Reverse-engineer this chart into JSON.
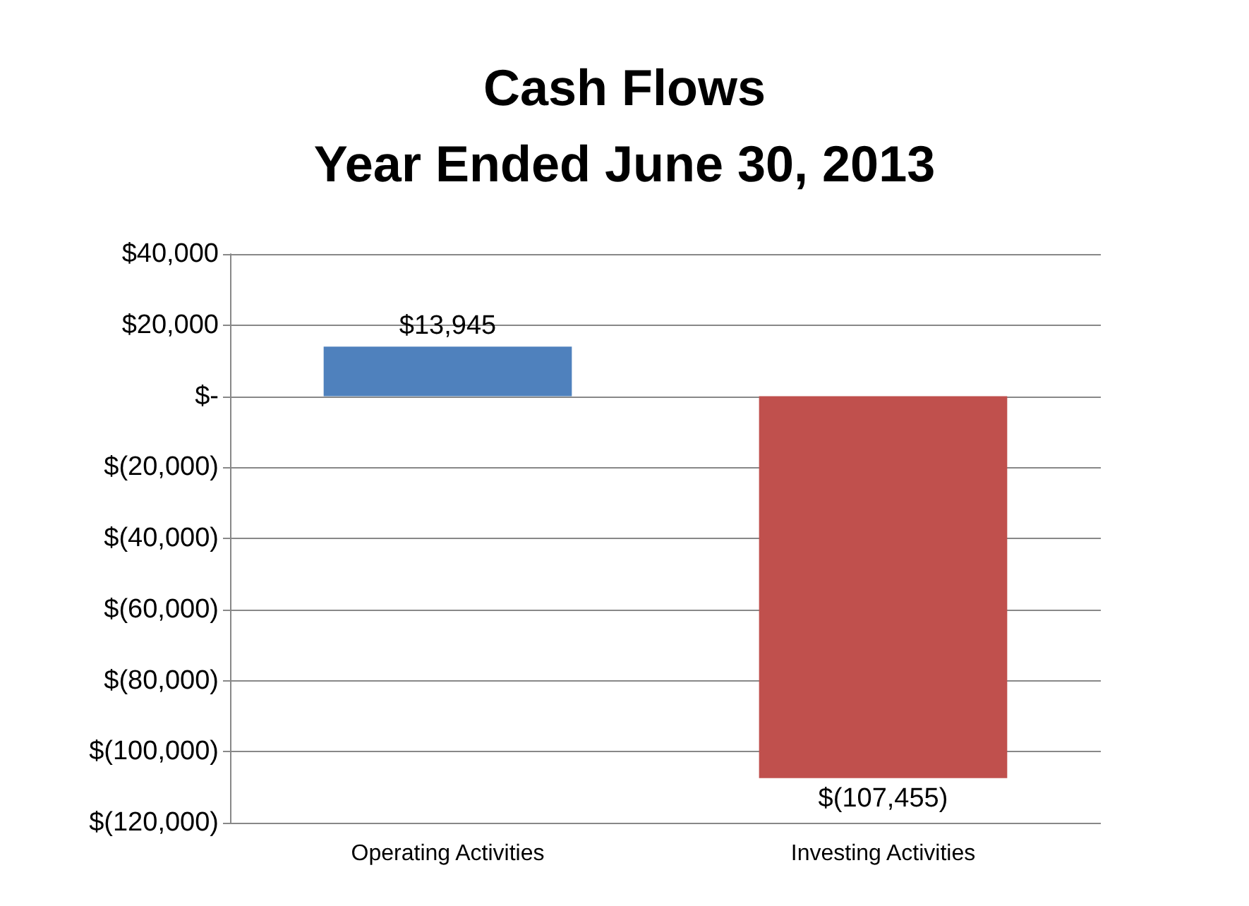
{
  "chart_data": {
    "type": "bar",
    "title": "Cash Flows\nYear Ended June 30, 2013",
    "categories": [
      "Operating Activities",
      "Investing Activities"
    ],
    "values": [
      13945,
      -107455
    ],
    "colors": [
      "#4f81bd",
      "#c0504d"
    ],
    "value_labels": [
      "$13,945",
      "$(107,455)"
    ],
    "ylim": [
      -120000,
      40000
    ],
    "yticks": [
      {
        "value": -120000,
        "label": "$(120,000)"
      },
      {
        "value": -100000,
        "label": "$(100,000)"
      },
      {
        "value": -80000,
        "label": "$(80,000)"
      },
      {
        "value": -60000,
        "label": "$(60,000)"
      },
      {
        "value": -40000,
        "label": "$(40,000)"
      },
      {
        "value": -20000,
        "label": "$(20,000)"
      },
      {
        "value": 0,
        "label": "$-"
      },
      {
        "value": 20000,
        "label": "$20,000"
      },
      {
        "value": 40000,
        "label": "$40,000"
      }
    ],
    "grid": "y"
  }
}
